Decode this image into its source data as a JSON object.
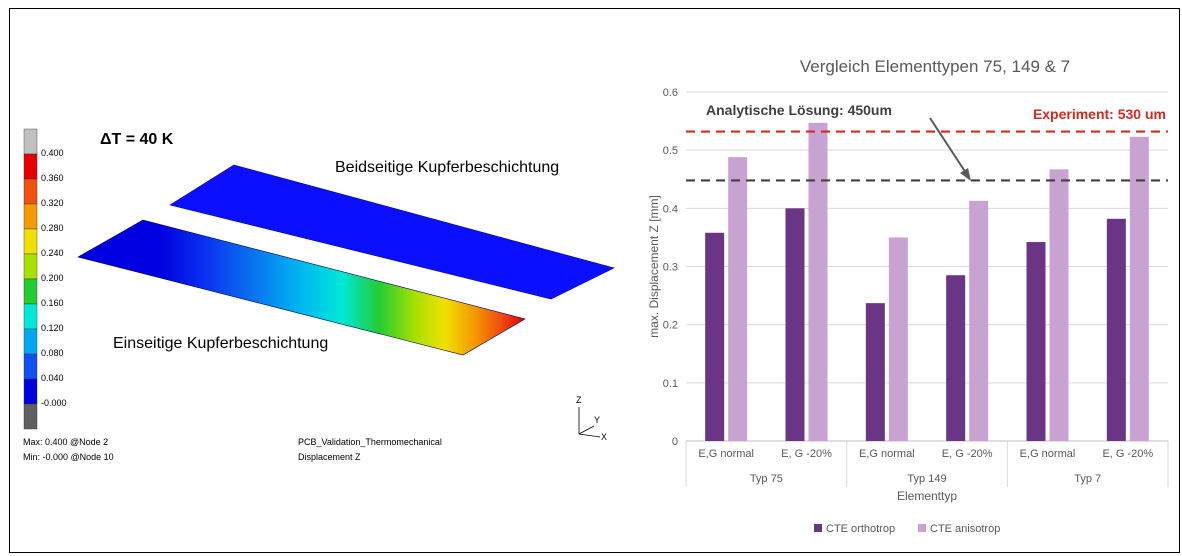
{
  "simulation": {
    "delta_t": "ΔT = 40 K",
    "label_top": "Beidseitige Kupferbeschichtung",
    "label_bottom": "Einseitige Kupferbeschichtung",
    "legend_values": [
      "0.400",
      "0.360",
      "0.320",
      "0.280",
      "0.240",
      "0.200",
      "0.160",
      "0.120",
      "0.080",
      "0.040",
      "-0.000"
    ],
    "legend_colors": [
      "#c0c0c0",
      "#e80000",
      "#f05010",
      "#f59a00",
      "#f0e000",
      "#a8e000",
      "#22cc33",
      "#00e8d8",
      "#00a8f0",
      "#1050f0",
      "#0000e0",
      "#606060"
    ],
    "footer_max": "Max:  0.400 @Node  2",
    "footer_min": "Min: -0.000 @Node  10",
    "footer_model": "PCB_Validation_Thermomechanical",
    "footer_result": "Displacement Z",
    "axis_z": "Z",
    "axis_y": "Y",
    "axis_x": "X"
  },
  "chart_data": {
    "type": "bar",
    "title": "Vergleich Elementtypen 75, 149 & 7",
    "xlabel": "Elementtyp",
    "ylabel": "max. Displacement Z [mm]",
    "ylim": [
      0,
      0.6
    ],
    "yticks": [
      "0",
      "0.1",
      "0.2",
      "0.3",
      "0.4",
      "0.5",
      "0.6"
    ],
    "grid": true,
    "legend_position": "bottom",
    "groups": [
      "Typ 75",
      "Typ 149",
      "Typ 7"
    ],
    "categories": [
      "E,G normal",
      "E, G -20%",
      "E,G normal",
      "E, G -20%",
      "E,G normal",
      "E, G -20%"
    ],
    "series": [
      {
        "name": "CTE orthotrop",
        "color": "#6a3585",
        "values": [
          0.358,
          0.4,
          0.237,
          0.285,
          0.342,
          0.382
        ]
      },
      {
        "name": "CTE anisotrop",
        "color": "#c8a3d1",
        "values": [
          0.488,
          0.547,
          0.35,
          0.413,
          0.467,
          0.523
        ]
      }
    ],
    "reference_lines": [
      {
        "label": "Analytische Lösung: 450um",
        "value": 0.448,
        "color": "#404040"
      },
      {
        "label": "Experiment: 530 um",
        "value": 0.532,
        "color": "#d42a20"
      }
    ]
  }
}
